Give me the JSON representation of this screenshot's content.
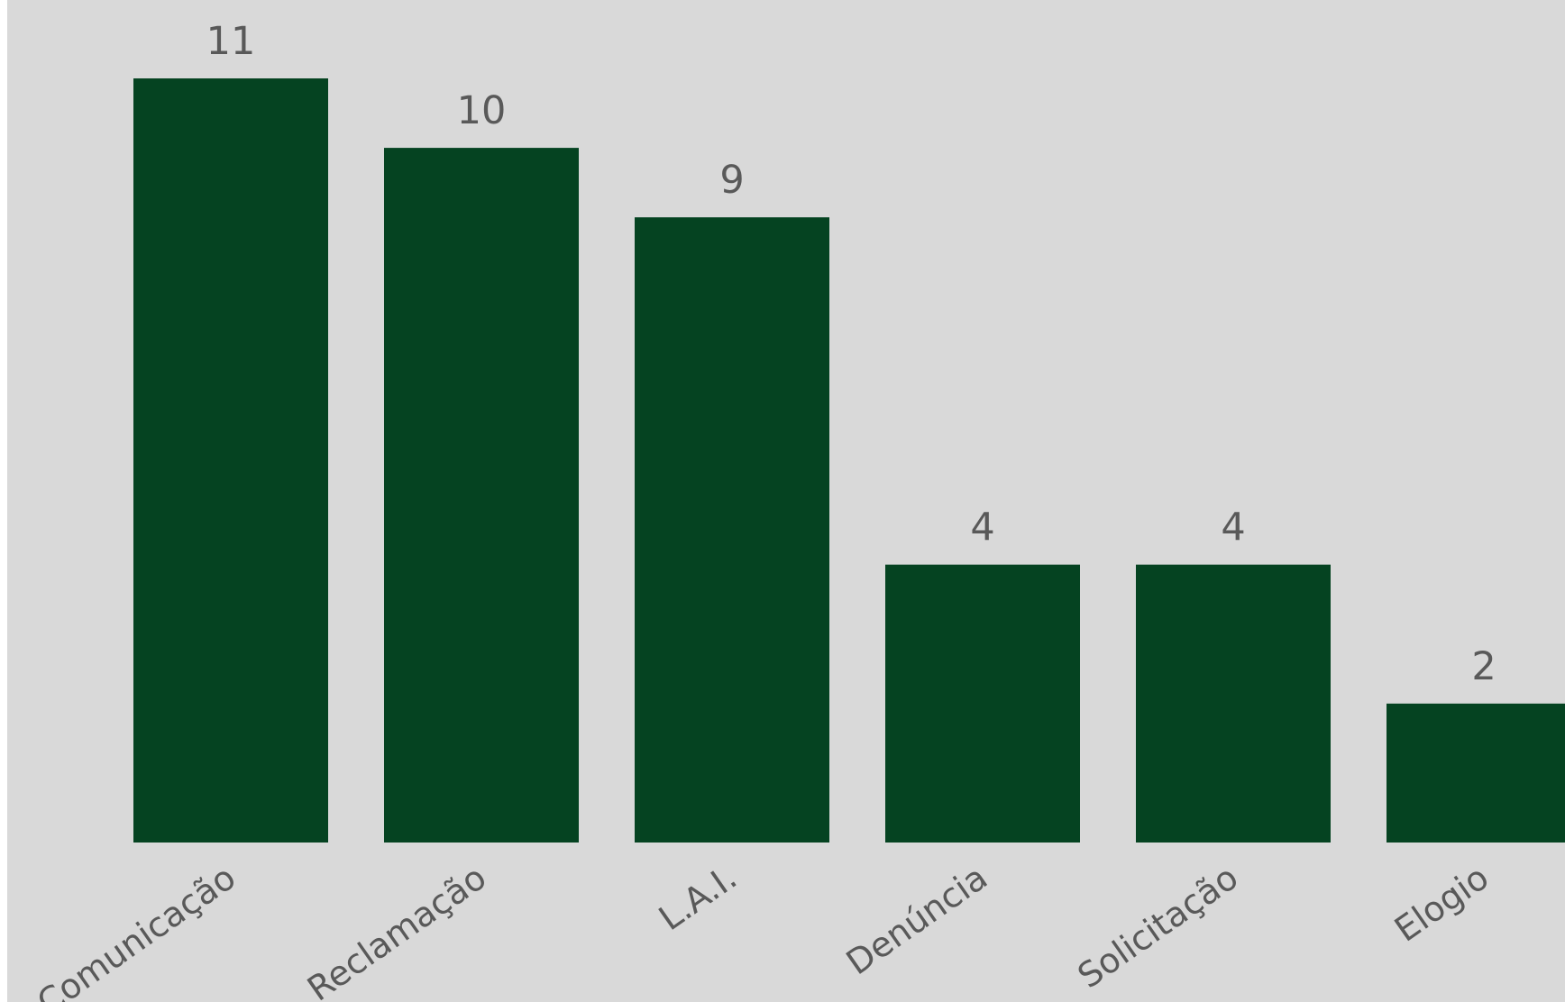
{
  "chart_data": {
    "type": "bar",
    "title": "",
    "xlabel": "",
    "ylabel": "",
    "categories": [
      "Comunicação",
      "Reclamação",
      "L.A.I.",
      "Denúncia",
      "Solicitação",
      "Elogio"
    ],
    "values": [
      11,
      10,
      9,
      4,
      4,
      2
    ],
    "ylim": [
      0,
      11
    ],
    "grid": false,
    "legend": "none",
    "data_labels": true,
    "bar_color": "#054321",
    "background_color": "#d9d9d9",
    "text_color": "#595959"
  }
}
